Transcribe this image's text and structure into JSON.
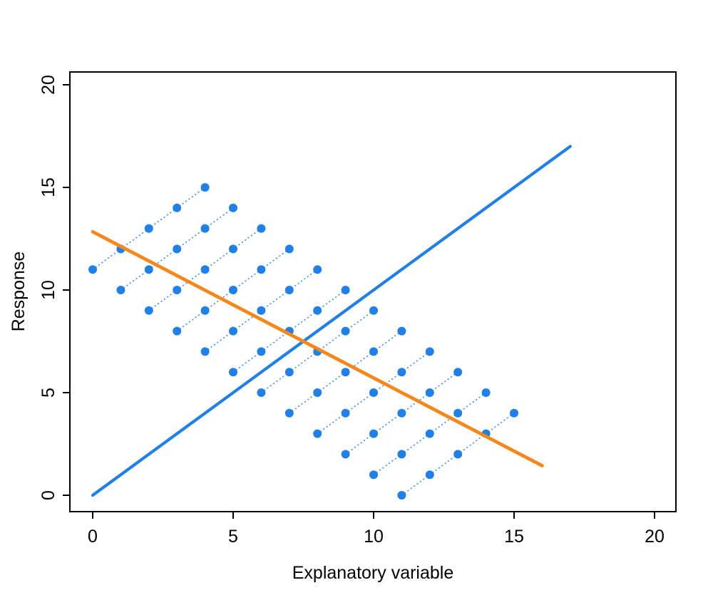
{
  "chart_data": {
    "type": "scatter",
    "title": "",
    "xlabel": "Explanatory variable",
    "ylabel": "Response",
    "xlim": [
      -0.8,
      20.8
    ],
    "ylim": [
      -0.8,
      20.8
    ],
    "x_ticks": [
      0,
      5,
      10,
      15,
      20
    ],
    "y_ticks": [
      0,
      5,
      10,
      15,
      20
    ],
    "grid": false,
    "legend": "none",
    "colors": {
      "point": "#2080E6",
      "connector": "#4D97E8",
      "identity_line": "#2080E6",
      "regression_line": "#F6871D",
      "axis": "#000000"
    },
    "points": [
      [
        0,
        11
      ],
      [
        1,
        12
      ],
      [
        2,
        13
      ],
      [
        3,
        14
      ],
      [
        4,
        15
      ],
      [
        1,
        10
      ],
      [
        2,
        11
      ],
      [
        3,
        12
      ],
      [
        4,
        13
      ],
      [
        5,
        14
      ],
      [
        2,
        9
      ],
      [
        3,
        10
      ],
      [
        4,
        11
      ],
      [
        5,
        12
      ],
      [
        6,
        13
      ],
      [
        3,
        8
      ],
      [
        4,
        9
      ],
      [
        5,
        10
      ],
      [
        6,
        11
      ],
      [
        7,
        12
      ],
      [
        4,
        7
      ],
      [
        5,
        8
      ],
      [
        6,
        9
      ],
      [
        7,
        10
      ],
      [
        8,
        11
      ],
      [
        5,
        6
      ],
      [
        6,
        7
      ],
      [
        7,
        8
      ],
      [
        8,
        9
      ],
      [
        9,
        10
      ],
      [
        6,
        5
      ],
      [
        7,
        6
      ],
      [
        8,
        7
      ],
      [
        9,
        8
      ],
      [
        10,
        9
      ],
      [
        7,
        4
      ],
      [
        8,
        5
      ],
      [
        9,
        6
      ],
      [
        10,
        7
      ],
      [
        11,
        8
      ],
      [
        8,
        3
      ],
      [
        9,
        4
      ],
      [
        10,
        5
      ],
      [
        11,
        6
      ],
      [
        12,
        7
      ],
      [
        9,
        2
      ],
      [
        10,
        3
      ],
      [
        11,
        4
      ],
      [
        12,
        5
      ],
      [
        13,
        6
      ],
      [
        10,
        1
      ],
      [
        11,
        2
      ],
      [
        12,
        3
      ],
      [
        13,
        4
      ],
      [
        14,
        5
      ],
      [
        11,
        0
      ],
      [
        12,
        1
      ],
      [
        13,
        2
      ],
      [
        14,
        3
      ],
      [
        15,
        4
      ]
    ],
    "chains": [
      [
        [
          0,
          11
        ],
        [
          1,
          12
        ],
        [
          2,
          13
        ],
        [
          3,
          14
        ],
        [
          4,
          15
        ]
      ],
      [
        [
          1,
          10
        ],
        [
          2,
          11
        ],
        [
          3,
          12
        ],
        [
          4,
          13
        ],
        [
          5,
          14
        ]
      ],
      [
        [
          2,
          9
        ],
        [
          3,
          10
        ],
        [
          4,
          11
        ],
        [
          5,
          12
        ],
        [
          6,
          13
        ]
      ],
      [
        [
          3,
          8
        ],
        [
          4,
          9
        ],
        [
          5,
          10
        ],
        [
          6,
          11
        ],
        [
          7,
          12
        ]
      ],
      [
        [
          4,
          7
        ],
        [
          5,
          8
        ],
        [
          6,
          9
        ],
        [
          7,
          10
        ],
        [
          8,
          11
        ]
      ],
      [
        [
          5,
          6
        ],
        [
          6,
          7
        ],
        [
          7,
          8
        ],
        [
          8,
          9
        ],
        [
          9,
          10
        ]
      ],
      [
        [
          6,
          5
        ],
        [
          7,
          6
        ],
        [
          8,
          7
        ],
        [
          9,
          8
        ],
        [
          10,
          9
        ]
      ],
      [
        [
          7,
          4
        ],
        [
          8,
          5
        ],
        [
          9,
          6
        ],
        [
          10,
          7
        ],
        [
          11,
          8
        ]
      ],
      [
        [
          8,
          3
        ],
        [
          9,
          4
        ],
        [
          10,
          5
        ],
        [
          11,
          6
        ],
        [
          12,
          7
        ]
      ],
      [
        [
          9,
          2
        ],
        [
          10,
          3
        ],
        [
          11,
          4
        ],
        [
          12,
          5
        ],
        [
          13,
          6
        ]
      ],
      [
        [
          10,
          1
        ],
        [
          11,
          2
        ],
        [
          12,
          3
        ],
        [
          13,
          4
        ],
        [
          14,
          5
        ]
      ],
      [
        [
          11,
          0
        ],
        [
          12,
          1
        ],
        [
          13,
          2
        ],
        [
          14,
          3
        ],
        [
          15,
          4
        ]
      ]
    ],
    "lines": [
      {
        "name": "identity-line",
        "color": "#2080E6",
        "from": [
          0,
          0
        ],
        "to": [
          17,
          17
        ],
        "style": "solid",
        "width": 4.2
      },
      {
        "name": "regression-line",
        "color": "#F6871D",
        "from": [
          0,
          12.84
        ],
        "to": [
          16,
          1.44
        ],
        "style": "solid",
        "width": 4.8
      }
    ]
  }
}
